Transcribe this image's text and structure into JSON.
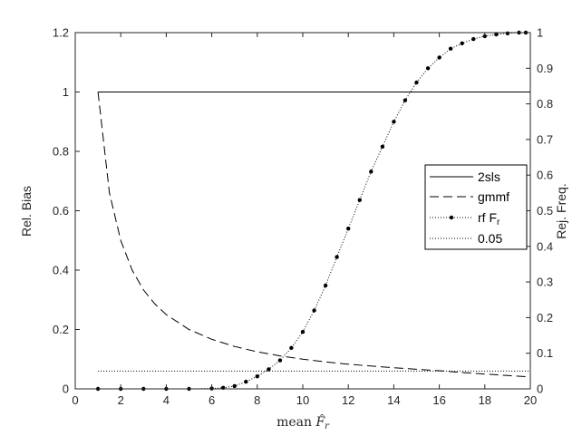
{
  "chart_data": {
    "type": "line",
    "xlabel": "mean F̂_r",
    "ylabel_left": "Rel. Bias",
    "ylabel_right": "Rej. Freq.",
    "xlim": [
      0,
      20
    ],
    "ylim_left": [
      0,
      1.2
    ],
    "ylim_right": [
      0,
      1
    ],
    "xticks": [
      0,
      2,
      4,
      6,
      8,
      10,
      12,
      14,
      16,
      18,
      20
    ],
    "yticks_left": [
      0,
      0.2,
      0.4,
      0.6,
      0.8,
      1,
      1.2
    ],
    "yticks_right": [
      0,
      0.1,
      0.2,
      0.3,
      0.4,
      0.5,
      0.6,
      0.7,
      0.8,
      0.9,
      1
    ],
    "grid": false,
    "legend_position": "middle-right",
    "series": [
      {
        "name": "2sls",
        "axis": "left",
        "style": "solid",
        "color": "#000000",
        "x": [
          1,
          20
        ],
        "y": [
          1.0,
          1.0
        ]
      },
      {
        "name": "gmmf",
        "axis": "left",
        "style": "dashed",
        "color": "#000000",
        "x": [
          1,
          1.5,
          2,
          2.5,
          3,
          3.5,
          4,
          5,
          6,
          7,
          8,
          9,
          10,
          11,
          12,
          13,
          14,
          15,
          16,
          17,
          18,
          19,
          20
        ],
        "y": [
          1.0,
          0.66,
          0.5,
          0.4,
          0.333,
          0.286,
          0.25,
          0.2,
          0.167,
          0.143,
          0.125,
          0.111,
          0.1,
          0.091,
          0.083,
          0.077,
          0.071,
          0.066,
          0.061,
          0.055,
          0.05,
          0.045,
          0.04
        ]
      },
      {
        "name": "rf F_r",
        "axis": "right",
        "style": "dotted-markers",
        "color": "#000000",
        "x": [
          1,
          2,
          3,
          4,
          5,
          6,
          6.5,
          7,
          7.5,
          8,
          8.5,
          9,
          9.5,
          10,
          10.5,
          11,
          11.5,
          12,
          12.5,
          13,
          13.5,
          14,
          14.5,
          15,
          15.5,
          16,
          16.5,
          17,
          17.5,
          18,
          18.5,
          19,
          19.5,
          19.8
        ],
        "y": [
          0,
          0,
          0,
          0,
          0,
          0.001,
          0.003,
          0.008,
          0.02,
          0.035,
          0.055,
          0.08,
          0.115,
          0.16,
          0.22,
          0.29,
          0.37,
          0.45,
          0.53,
          0.61,
          0.68,
          0.75,
          0.81,
          0.86,
          0.9,
          0.93,
          0.955,
          0.97,
          0.982,
          0.99,
          0.995,
          0.998,
          1.0,
          1.0
        ]
      },
      {
        "name": "0.05",
        "axis": "right",
        "style": "dotted",
        "color": "#000000",
        "x": [
          1,
          20
        ],
        "y": [
          0.05,
          0.05
        ]
      }
    ]
  }
}
